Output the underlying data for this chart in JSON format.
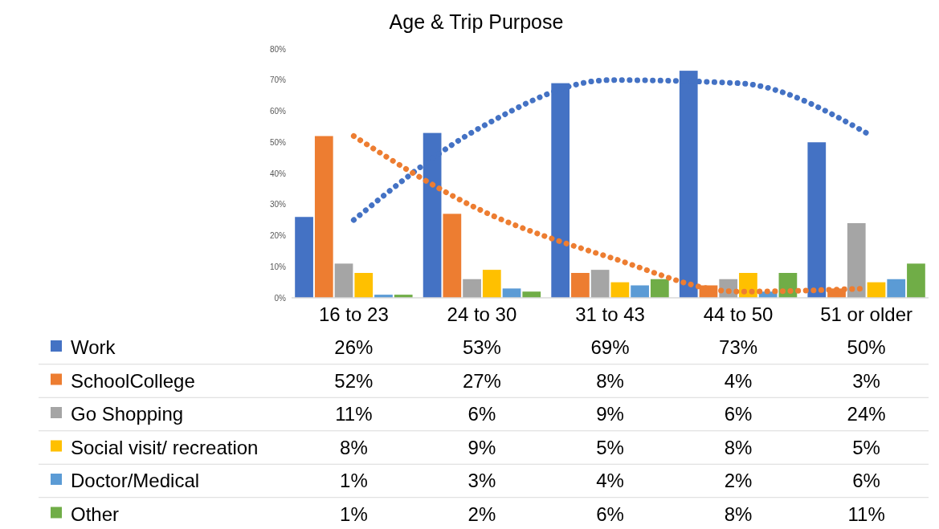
{
  "chart_data": {
    "type": "bar",
    "title": "Age & Trip Purpose",
    "categories": [
      "16 to 23",
      "24 to 30",
      "31 to 43",
      "44 to 50",
      "51 or older"
    ],
    "series": [
      {
        "name": "Work",
        "color": "#4472c4",
        "values": [
          26,
          53,
          69,
          73,
          50
        ],
        "value_labels": [
          "26%",
          "53%",
          "69%",
          "73%",
          "50%"
        ]
      },
      {
        "name": "SchoolCollege",
        "color": "#ed7d31",
        "values": [
          52,
          27,
          8,
          4,
          3
        ],
        "value_labels": [
          "52%",
          "27%",
          "8%",
          "4%",
          "3%"
        ]
      },
      {
        "name": "Go Shopping",
        "color": "#a5a5a5",
        "values": [
          11,
          6,
          9,
          6,
          24
        ],
        "value_labels": [
          "11%",
          "6%",
          "9%",
          "6%",
          "24%"
        ]
      },
      {
        "name": "Social visit/ recreation",
        "color": "#ffc000",
        "values": [
          8,
          9,
          5,
          8,
          5
        ],
        "value_labels": [
          "8%",
          "9%",
          "5%",
          "8%",
          "5%"
        ]
      },
      {
        "name": "Doctor/Medical",
        "color": "#5b9bd5",
        "values": [
          1,
          3,
          4,
          2,
          6
        ],
        "value_labels": [
          "1%",
          "3%",
          "4%",
          "2%",
          "6%"
        ]
      },
      {
        "name": "Other",
        "color": "#70ad47",
        "values": [
          1,
          2,
          6,
          8,
          11
        ],
        "value_labels": [
          "1%",
          "2%",
          "6%",
          "8%",
          "11%"
        ]
      },
      {
        "type": "line",
        "line_style": "dotted",
        "color": "#4472c4",
        "values": [
          25,
          55,
          70,
          69,
          53
        ]
      },
      {
        "type": "line",
        "line_style": "dotted",
        "color": "#ed7d31",
        "values": [
          52,
          28,
          13,
          2,
          3
        ]
      }
    ],
    "ylim": [
      0,
      80
    ],
    "yticks": [
      {
        "value": 0,
        "label": "0%"
      },
      {
        "value": 10,
        "label": "10%"
      },
      {
        "value": 20,
        "label": "20%"
      },
      {
        "value": 30,
        "label": "30%"
      },
      {
        "value": 40,
        "label": "40%"
      },
      {
        "value": 50,
        "label": "50%"
      },
      {
        "value": 60,
        "label": "60%"
      },
      {
        "value": 70,
        "label": "70%"
      },
      {
        "value": 80,
        "label": "80%"
      }
    ],
    "legend": "bottom left"
  }
}
